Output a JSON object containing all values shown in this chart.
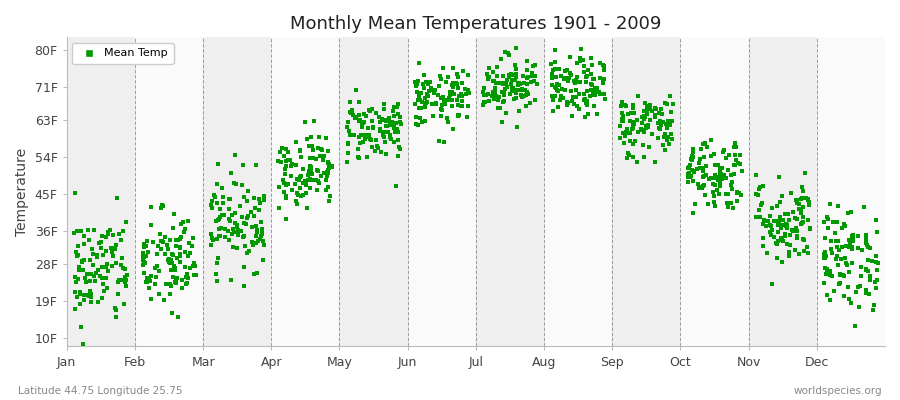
{
  "title": "Monthly Mean Temperatures 1901 - 2009",
  "ylabel": "Temperature",
  "yticks": [
    10,
    19,
    28,
    36,
    45,
    54,
    63,
    71,
    80
  ],
  "ytick_labels": [
    "10F",
    "19F",
    "28F",
    "36F",
    "45F",
    "54F",
    "63F",
    "71F",
    "80F"
  ],
  "ylim": [
    8,
    83
  ],
  "months": [
    "Jan",
    "Feb",
    "Mar",
    "Apr",
    "May",
    "Jun",
    "Jul",
    "Aug",
    "Sep",
    "Oct",
    "Nov",
    "Dec"
  ],
  "dot_color": "#009900",
  "dot_size": 5,
  "background_color": "#FFFFFF",
  "plot_bg_odd": "#EFEFEF",
  "plot_bg_even": "#FAFAFA",
  "grid_color": "#777777",
  "subtitle_left": "Latitude 44.75 Longitude 25.75",
  "subtitle_right": "worldspecies.org",
  "legend_label": "Mean Temp",
  "num_years": 109,
  "mean_temps_C": [
    -3.0,
    -2.0,
    3.5,
    10.5,
    16.0,
    20.0,
    22.0,
    21.5,
    16.5,
    10.0,
    3.5,
    -1.5
  ],
  "std_temps": [
    3.8,
    3.5,
    3.2,
    2.5,
    2.2,
    2.0,
    2.0,
    2.0,
    2.2,
    2.5,
    3.0,
    3.5
  ]
}
